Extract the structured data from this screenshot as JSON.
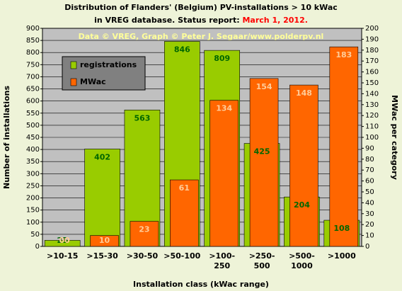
{
  "chart_data": {
    "type": "bar",
    "title": "Distribution of Flanders' (Belgium) PV-installations > 10 kWac",
    "title_line2": "in VREG database. Status report: ",
    "title_date": "March 1, 2012.",
    "subtitle": "Data © VREG, Graph © Peter J. Segaar/www.polderpv.nl",
    "xlabel": "Installation class (kWac range)",
    "ylabel": "Number of installations",
    "y2label": "MWac per category",
    "categories": [
      ">10-15",
      ">15-30",
      ">30-50",
      ">50-100",
      ">100-\n250",
      ">250-\n500",
      ">500-\n1000",
      ">1000"
    ],
    "series": [
      {
        "name": "registrations",
        "color": "#99cc00",
        "values": [
          25,
          402,
          563,
          846,
          809,
          425,
          204,
          108
        ]
      },
      {
        "name": "MWac",
        "color": "#ff6600",
        "axis": "y2",
        "values": [
          0,
          10,
          23,
          61,
          134,
          154,
          148,
          183
        ],
        "value_labels": [
          "00",
          "10",
          "23",
          "61",
          "134",
          "154",
          "148",
          "183"
        ]
      }
    ],
    "ylim": [
      0,
      900
    ],
    "yticks": [
      0,
      50,
      100,
      150,
      200,
      250,
      300,
      350,
      400,
      450,
      500,
      550,
      600,
      650,
      700,
      750,
      800,
      850,
      900
    ],
    "y2lim": [
      0,
      200
    ],
    "y2ticks": [
      0,
      10,
      20,
      30,
      40,
      50,
      60,
      70,
      80,
      90,
      100,
      110,
      120,
      130,
      140,
      150,
      160,
      170,
      180,
      190,
      200
    ],
    "grid": true,
    "legend": "upper left"
  }
}
